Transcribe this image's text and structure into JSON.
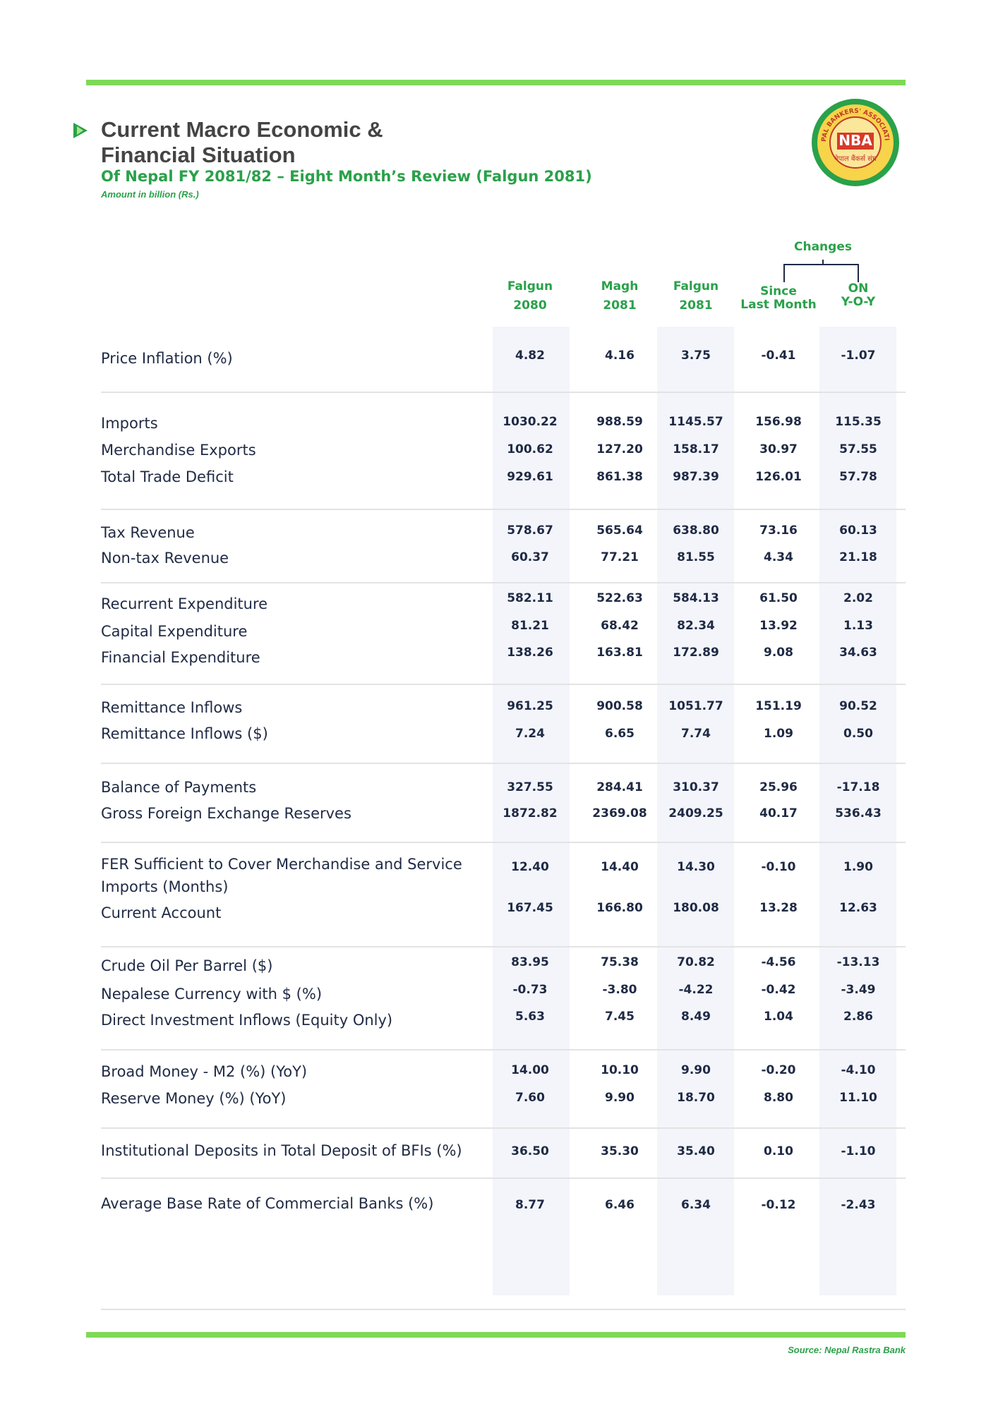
{
  "header": {
    "title_line1": "Current Macro Economic &",
    "title_line2": "Financial Situation",
    "subtitle": "Of Nepal FY 2081/82 – Eight Month’s Review (Falgun 2081)",
    "note": "Amount in billion (Rs.)"
  },
  "logo": {
    "abbr": "NBA",
    "name": "NEPAL BANKERS' ASSOCIATION",
    "local": "नेपाल बैंकर्स संघ"
  },
  "table": {
    "changes": "Changes",
    "columns": [
      {
        "line1": "Falgun",
        "line2": "2080"
      },
      {
        "line1": "Magh",
        "line2": "2081"
      },
      {
        "line1": "Falgun",
        "line2": "2081"
      },
      {
        "line1": "Since",
        "line2": "Last Month"
      },
      {
        "line1": "ON",
        "line2": "Y-O-Y"
      }
    ],
    "groups": [
      [
        {
          "label": "Price Inflation (%)",
          "values": [
            "4.82",
            "4.16",
            "3.75",
            "-0.41",
            "-1.07"
          ]
        }
      ],
      [
        {
          "label": "Imports",
          "values": [
            "1030.22",
            "988.59",
            "1145.57",
            "156.98",
            "115.35"
          ]
        },
        {
          "label": "Merchandise Exports",
          "values": [
            "100.62",
            "127.20",
            "158.17",
            "30.97",
            "57.55"
          ]
        },
        {
          "label": "Total Trade Deficit",
          "values": [
            "929.61",
            "861.38",
            "987.39",
            "126.01",
            "57.78"
          ]
        }
      ],
      [
        {
          "label": "Tax Revenue",
          "values": [
            "578.67",
            "565.64",
            "638.80",
            "73.16",
            "60.13"
          ]
        },
        {
          "label": "Non-tax Revenue",
          "values": [
            "60.37",
            "77.21",
            "81.55",
            "4.34",
            "21.18"
          ]
        }
      ],
      [
        {
          "label": "Recurrent Expenditure",
          "values": [
            "582.11",
            "522.63",
            "584.13",
            "61.50",
            "2.02"
          ]
        },
        {
          "label": "Capital Expenditure",
          "values": [
            "81.21",
            "68.42",
            "82.34",
            "13.92",
            "1.13"
          ]
        },
        {
          "label": "Financial Expenditure",
          "values": [
            "138.26",
            "163.81",
            "172.89",
            "9.08",
            "34.63"
          ]
        }
      ],
      [
        {
          "label": "Remittance Inflows",
          "values": [
            "961.25",
            "900.58",
            "1051.77",
            "151.19",
            "90.52"
          ]
        },
        {
          "label": "Remittance Inflows ($)",
          "values": [
            "7.24",
            "6.65",
            "7.74",
            "1.09",
            "0.50"
          ]
        }
      ],
      [
        {
          "label": "Balance of Payments",
          "values": [
            "327.55",
            "284.41",
            "310.37",
            "25.96",
            "-17.18"
          ]
        },
        {
          "label": "Gross Foreign Exchange Reserves",
          "values": [
            "1872.82",
            "2369.08",
            "2409.25",
            "40.17",
            "536.43"
          ]
        }
      ],
      [
        {
          "label": "FER Sufficient to Cover Merchandise and Service Imports (Months)",
          "values": [
            "12.40",
            "14.40",
            "14.30",
            "-0.10",
            "1.90"
          ]
        },
        {
          "label": "Current Account",
          "values": [
            "167.45",
            "166.80",
            "180.08",
            "13.28",
            "12.63"
          ]
        }
      ],
      [
        {
          "label": "Crude Oil Per Barrel ($)",
          "values": [
            "83.95",
            "75.38",
            "70.82",
            "-4.56",
            "-13.13"
          ]
        },
        {
          "label": "Nepalese Currency with $ (%)",
          "values": [
            "-0.73",
            "-3.80",
            "-4.22",
            "-0.42",
            "-3.49"
          ]
        },
        {
          "label": "Direct Investment Inflows (Equity Only)",
          "values": [
            "5.63",
            "7.45",
            "8.49",
            "1.04",
            "2.86"
          ]
        }
      ],
      [
        {
          "label": "Broad Money - M2 (%) (YoY)",
          "values": [
            "14.00",
            "10.10",
            "9.90",
            "-0.20",
            "-4.10"
          ]
        },
        {
          "label": "Reserve Money (%) (YoY)",
          "values": [
            "7.60",
            "9.90",
            "18.70",
            "8.80",
            "11.10"
          ]
        }
      ],
      [
        {
          "label": "Institutional Deposits in Total Deposit of BFIs (%)",
          "values": [
            "36.50",
            "35.30",
            "35.40",
            "0.10",
            "-1.10"
          ]
        }
      ],
      [
        {
          "label": "Average Base Rate of Commercial Banks (%)",
          "values": [
            "8.77",
            "6.46",
            "6.34",
            "-0.12",
            "-2.43"
          ]
        }
      ]
    ]
  },
  "footer": {
    "source": "Source: Nepal Rastra Bank"
  }
}
